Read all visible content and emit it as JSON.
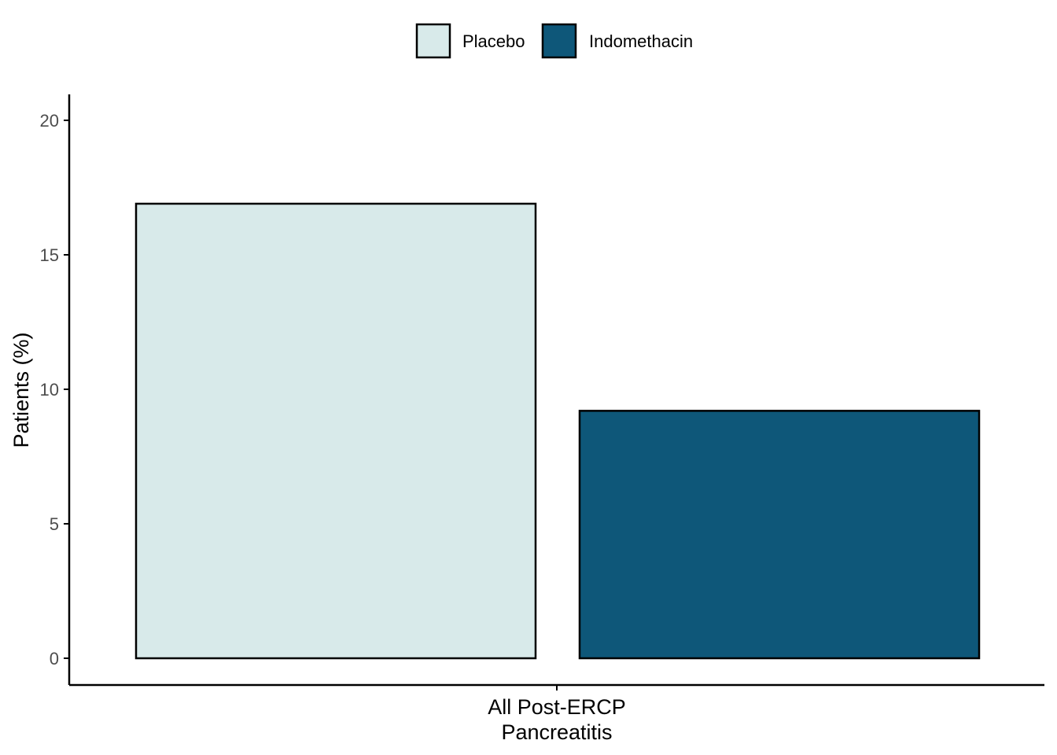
{
  "chart_data": {
    "type": "bar",
    "categories": [
      "All Post-ERCP\nPancreatitis"
    ],
    "series": [
      {
        "name": "Placebo",
        "values": [
          16.9
        ],
        "color": "#d8eaea"
      },
      {
        "name": "Indomethacin",
        "values": [
          9.2
        ],
        "color": "#0e5779"
      }
    ],
    "xlabel": "",
    "ylabel": "Patients (%)",
    "ylim": [
      0,
      21
    ],
    "yticks": [
      0,
      5,
      10,
      15,
      20
    ],
    "grid": false,
    "legend_position": "top",
    "bar_stroke_color": "#000000"
  }
}
